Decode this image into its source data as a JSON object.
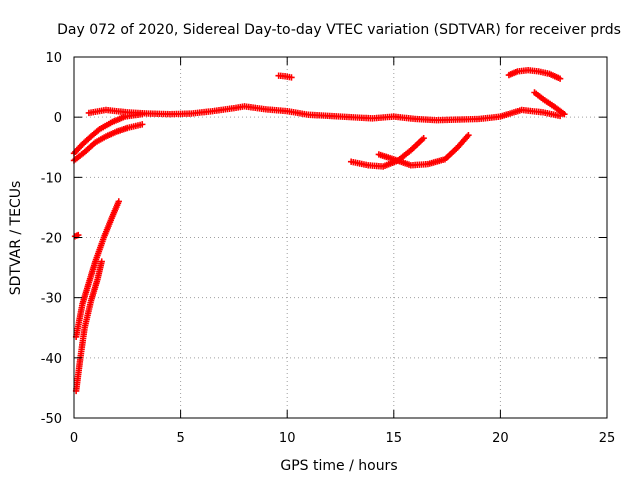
{
  "chart_data": {
    "type": "scatter",
    "title": "Day 072 of 2020, Sidereal Day-to-day VTEC variation (SDTVAR) for receiver prds",
    "xlabel": "GPS time / hours",
    "ylabel": "SDTVAR / TECUs",
    "xlim": [
      0,
      25
    ],
    "ylim": [
      -50,
      10
    ],
    "xticks": [
      0,
      5,
      10,
      15,
      20,
      25
    ],
    "yticks": [
      -50,
      -40,
      -30,
      -20,
      -10,
      0,
      10
    ],
    "grid": true,
    "marker": "+",
    "color": "#ff0000",
    "series": [
      {
        "name": "arc-main-0",
        "x": [
          0.7,
          1.5,
          2.5,
          3.5,
          4.5,
          5.5,
          6.5,
          7.5,
          8.0,
          9.0,
          10.0,
          11.0,
          12.0,
          13.0,
          14.0,
          15.0,
          16.0,
          17.0,
          18.0,
          19.0,
          20.0,
          21.0,
          22.0,
          22.8
        ],
        "y": [
          0.7,
          1.2,
          0.8,
          0.6,
          0.5,
          0.6,
          1.0,
          1.5,
          1.8,
          1.3,
          1.0,
          0.4,
          0.2,
          0.0,
          -0.2,
          0.1,
          -0.3,
          -0.5,
          -0.4,
          -0.3,
          0.1,
          1.2,
          0.8,
          0.2
        ]
      },
      {
        "name": "arc-rise-a",
        "x": [
          0.0,
          0.4,
          0.8,
          1.2,
          1.8,
          2.4,
          3.2
        ],
        "y": [
          -6.0,
          -4.5,
          -3.2,
          -2.0,
          -0.8,
          0.1,
          0.5
        ]
      },
      {
        "name": "arc-rise-b",
        "x": [
          0.0,
          0.5,
          1.0,
          1.5,
          2.0,
          2.5,
          3.2
        ],
        "y": [
          -7.2,
          -5.8,
          -4.2,
          -3.2,
          -2.4,
          -1.8,
          -1.2
        ]
      },
      {
        "name": "arc-steep-a",
        "x": [
          0.1,
          0.4,
          0.7,
          1.0,
          1.4,
          1.8,
          2.1
        ],
        "y": [
          -36.5,
          -31.0,
          -27.5,
          -24.0,
          -20.0,
          -16.5,
          -14.0
        ]
      },
      {
        "name": "arc-steep-b",
        "x": [
          0.1,
          0.3,
          0.5,
          0.8,
          1.1,
          1.3
        ],
        "y": [
          -45.5,
          -40.0,
          -35.0,
          -30.5,
          -27.0,
          -24.0
        ]
      },
      {
        "name": "dot-a",
        "x": [
          0.05,
          0.2
        ],
        "y": [
          -19.8,
          -19.6
        ]
      },
      {
        "name": "arc-short-top",
        "x": [
          9.6,
          9.9,
          10.2
        ],
        "y": [
          6.9,
          6.8,
          6.6
        ]
      },
      {
        "name": "arc-dip-a",
        "x": [
          13.0,
          13.8,
          14.5,
          15.2,
          15.8,
          16.4
        ],
        "y": [
          -7.4,
          -8.0,
          -8.2,
          -7.2,
          -5.5,
          -3.5
        ]
      },
      {
        "name": "arc-dip-b",
        "x": [
          14.3,
          15.0,
          15.8,
          16.6,
          17.4,
          18.0,
          18.5
        ],
        "y": [
          -6.2,
          -7.0,
          -8.0,
          -7.8,
          -7.0,
          -5.0,
          -3.0
        ]
      },
      {
        "name": "arc-top-right",
        "x": [
          20.4,
          20.8,
          21.3,
          21.8,
          22.3,
          22.8
        ],
        "y": [
          7.0,
          7.6,
          7.8,
          7.6,
          7.2,
          6.4
        ]
      },
      {
        "name": "arc-right-fall",
        "x": [
          21.6,
          22.0,
          22.5,
          23.0
        ],
        "y": [
          4.1,
          3.0,
          1.8,
          0.5
        ]
      }
    ]
  }
}
